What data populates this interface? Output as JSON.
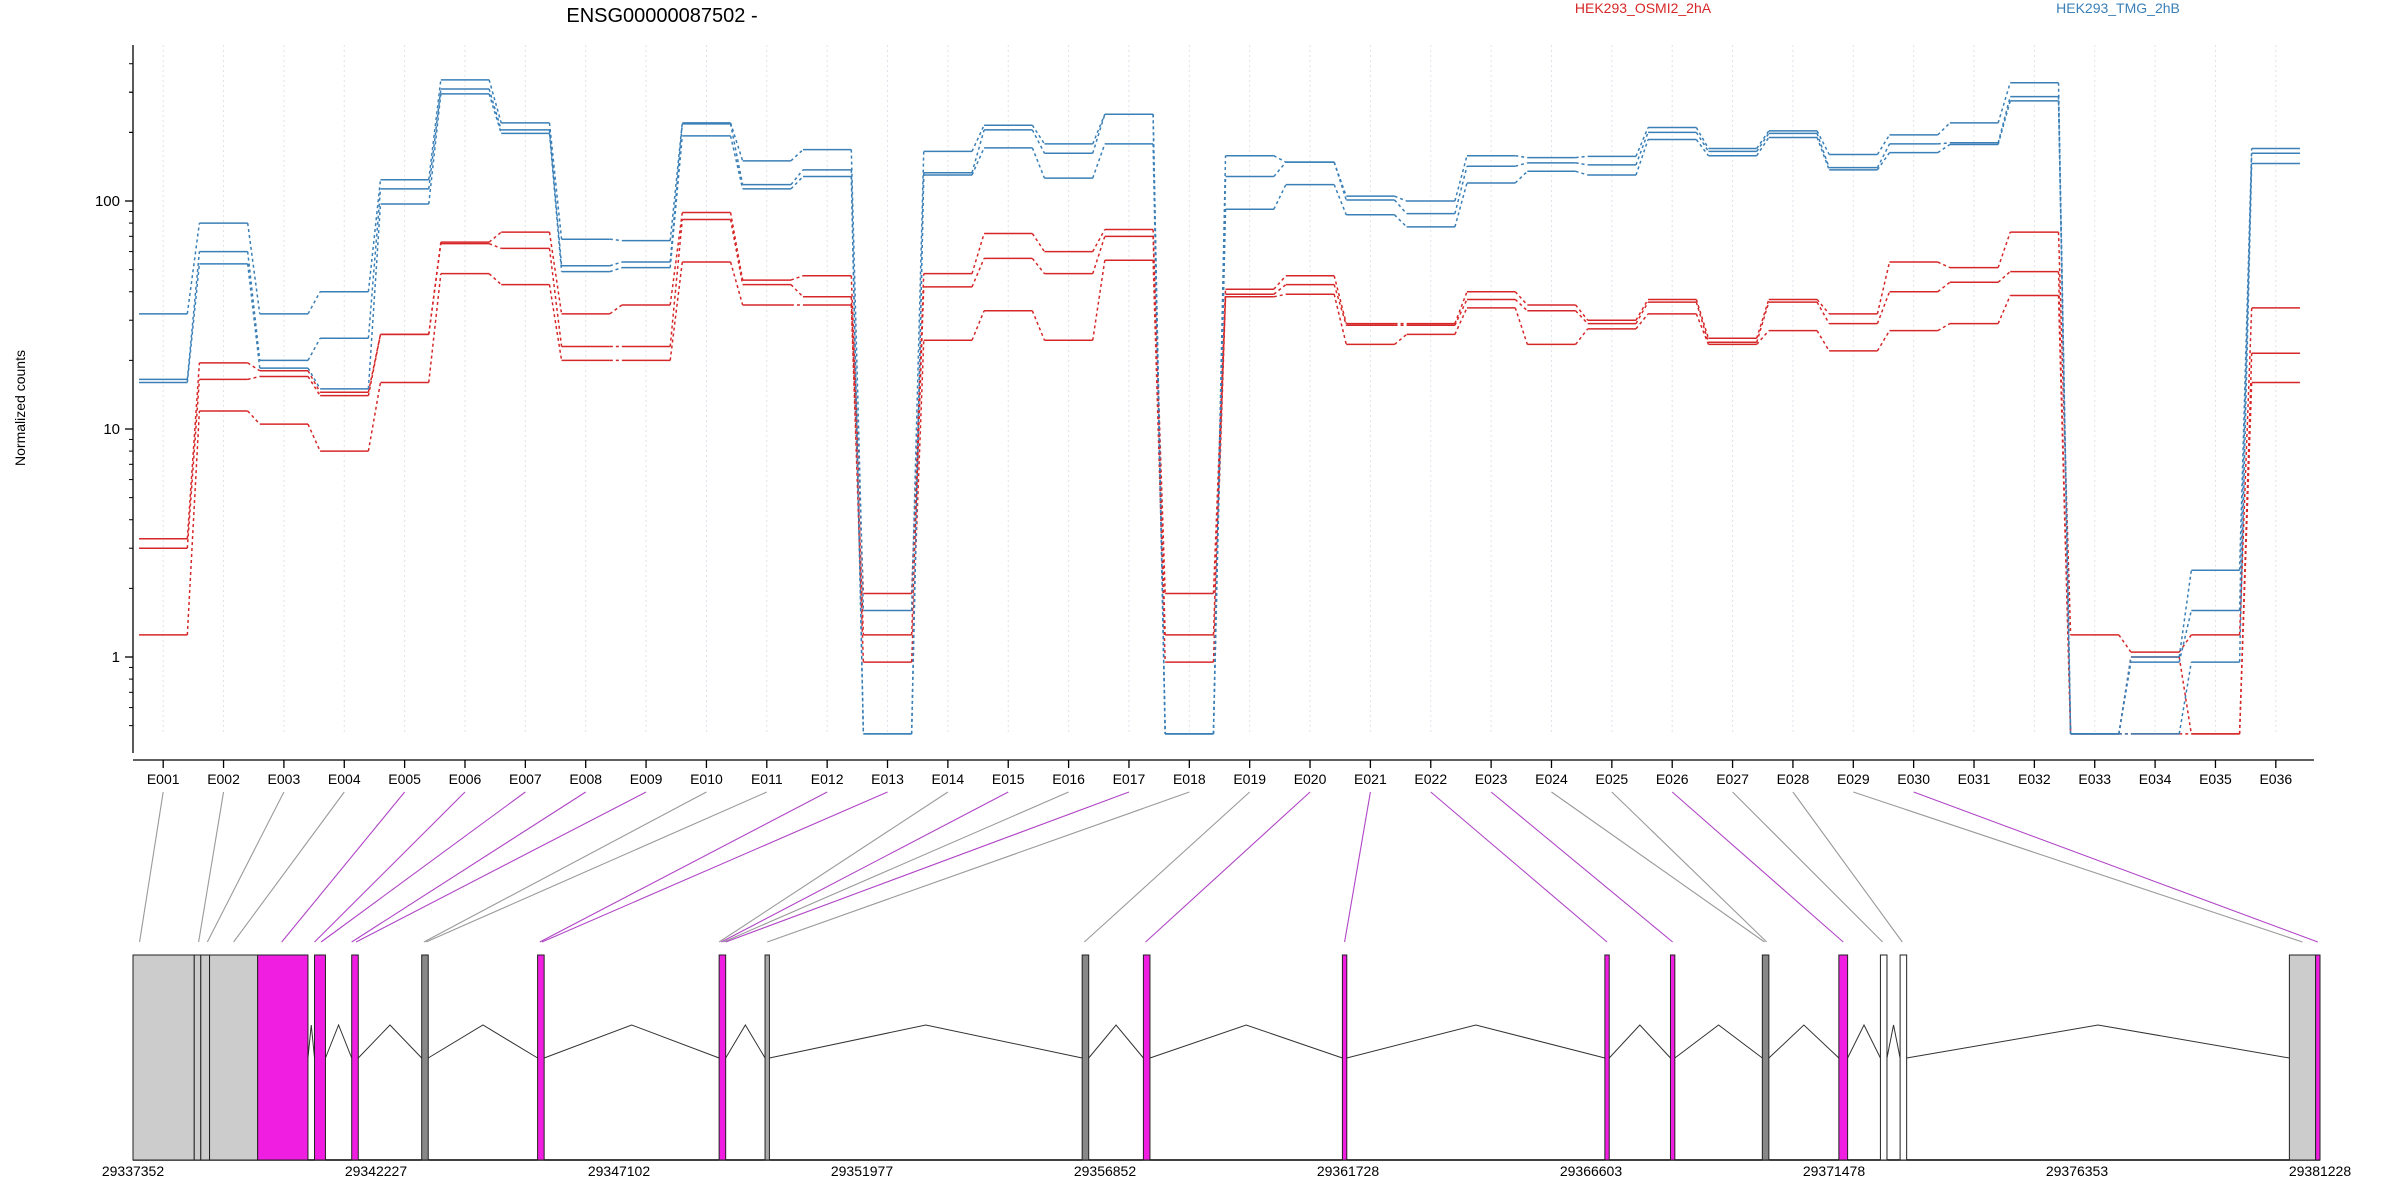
{
  "chart_data": {
    "type": "line",
    "title": "ENSG00000087502 -",
    "ylabel": "Normalized counts",
    "yscale": "log",
    "ylim": [
      0.45,
      400
    ],
    "yticks": [
      1,
      10,
      100
    ],
    "ytick_labels": [
      "1",
      "10",
      "100"
    ],
    "grid": "vertical dotted lines at each exon",
    "legend": [
      {
        "name": "HEK293_OSMI2_2hA",
        "color": "#d62728",
        "position": "top"
      },
      {
        "name": "HEK293_TMG_2hB",
        "color": "#3a7fb6",
        "position": "top-right"
      }
    ],
    "categories": [
      "E001",
      "E002",
      "E003",
      "E004",
      "E005",
      "E006",
      "E007",
      "E008",
      "E009",
      "E010",
      "E011",
      "E012",
      "E013",
      "E014",
      "E015",
      "E016",
      "E017",
      "E018",
      "E019",
      "E020",
      "E021",
      "E022",
      "E023",
      "E024",
      "E025",
      "E026",
      "E027",
      "E028",
      "E029",
      "E030",
      "E031",
      "E032",
      "E033",
      "E034",
      "E035",
      "E036"
    ],
    "series": [
      {
        "group": "HEK293_OSMI2_2hA",
        "color": "#d62728",
        "values": [
          3.3,
          19.5,
          18,
          14.5,
          26,
          66,
          73,
          32,
          35,
          89,
          45,
          47,
          1.9,
          48,
          72,
          60,
          75,
          1.9,
          41,
          47,
          29,
          29,
          40,
          35,
          30,
          37,
          25,
          37,
          32,
          54,
          51,
          73,
          1.25,
          1.05,
          1.25,
          34
        ]
      },
      {
        "group": "HEK293_OSMI2_2hA",
        "color": "#d62728",
        "values": [
          3.0,
          16.5,
          17,
          14.0,
          26,
          65,
          62,
          23,
          23,
          83,
          43,
          38,
          1.25,
          42,
          56,
          48,
          70,
          1.25,
          39,
          43,
          28.5,
          28.5,
          37,
          33,
          29,
          36,
          24,
          36,
          29,
          40,
          44,
          49,
          0.46,
          1.0,
          0.46,
          21.5
        ]
      },
      {
        "group": "HEK293_OSMI2_2hA",
        "color": "#d62728",
        "values": [
          1.25,
          12,
          10.5,
          8,
          16,
          48,
          43,
          20,
          20,
          54,
          35,
          35,
          0.95,
          24.5,
          33,
          24.5,
          55,
          0.95,
          38,
          39,
          23.5,
          26,
          34,
          23.5,
          27.5,
          32,
          23.5,
          27,
          22,
          27,
          29,
          38.5,
          0.46,
          0.46,
          0.46,
          16
        ]
      },
      {
        "group": "HEK293_TMG_2hB",
        "color": "#3a7fb6",
        "values": [
          32,
          80,
          32,
          40,
          124,
          340,
          220,
          68,
          67,
          220,
          150,
          168,
          1.6,
          165,
          215,
          178,
          240,
          0.46,
          158,
          148,
          105,
          100,
          158,
          155,
          157,
          210,
          170,
          203,
          160,
          195,
          220,
          330,
          0.46,
          1.0,
          2.4,
          170
        ]
      },
      {
        "group": "HEK293_TMG_2hB",
        "color": "#3a7fb6",
        "values": [
          16.5,
          60,
          20,
          25,
          113,
          310,
          205,
          52,
          54,
          218,
          118,
          137,
          0.46,
          133,
          205,
          162,
          240,
          0.46,
          128,
          148,
          101,
          88,
          142,
          147,
          144,
          200,
          165,
          198,
          140,
          178,
          180,
          287,
          0.46,
          0.95,
          1.6,
          162
        ]
      },
      {
        "group": "HEK293_TMG_2hB",
        "color": "#3a7fb6",
        "values": [
          16,
          53,
          18.5,
          15,
          97,
          295,
          198,
          49,
          51,
          193,
          113,
          128,
          0.46,
          130,
          171,
          126,
          178,
          0.46,
          92,
          118,
          87,
          77,
          120,
          135,
          130,
          186,
          158,
          190,
          137,
          163,
          177,
          275,
          0.46,
          0.46,
          0.95,
          146
        ]
      }
    ],
    "gene_model": {
      "coordinate_ticks": [
        "29337352",
        "29342227",
        "29347102",
        "29351977",
        "29356852",
        "29361728",
        "29366603",
        "29371478",
        "29376353",
        "29381228"
      ],
      "exon_boxes": [
        {
          "start": 0.0,
          "end": 0.028,
          "fill": "#cccccc"
        },
        {
          "start": 0.028,
          "end": 0.031,
          "fill": "#cccccc"
        },
        {
          "start": 0.031,
          "end": 0.035,
          "fill": "#cccccc"
        },
        {
          "start": 0.035,
          "end": 0.057,
          "fill": "#cccccc"
        },
        {
          "start": 0.057,
          "end": 0.08,
          "fill": "#f01ee0"
        },
        {
          "start": 0.083,
          "end": 0.088,
          "fill": "#f01ee0"
        },
        {
          "start": 0.1,
          "end": 0.103,
          "fill": "#f01ee0"
        },
        {
          "start": 0.132,
          "end": 0.135,
          "fill": "#888888"
        },
        {
          "start": 0.185,
          "end": 0.188,
          "fill": "#f01ee0"
        },
        {
          "start": 0.268,
          "end": 0.271,
          "fill": "#f01ee0"
        },
        {
          "start": 0.289,
          "end": 0.291,
          "fill": "#aaaaaa"
        },
        {
          "start": 0.434,
          "end": 0.437,
          "fill": "#888888"
        },
        {
          "start": 0.462,
          "end": 0.465,
          "fill": "#f01ee0"
        },
        {
          "start": 0.553,
          "end": 0.555,
          "fill": "#f01ee0"
        },
        {
          "start": 0.673,
          "end": 0.675,
          "fill": "#f01ee0"
        },
        {
          "start": 0.703,
          "end": 0.705,
          "fill": "#f01ee0"
        },
        {
          "start": 0.745,
          "end": 0.748,
          "fill": "#888888"
        },
        {
          "start": 0.78,
          "end": 0.784,
          "fill": "#f01ee0"
        },
        {
          "start": 0.799,
          "end": 0.802,
          "fill": "#ffffff"
        },
        {
          "start": 0.808,
          "end": 0.811,
          "fill": "#ffffff"
        },
        {
          "start": 0.986,
          "end": 0.998,
          "fill": "#cccccc"
        },
        {
          "start": 0.998,
          "end": 1.0,
          "fill": "#f01ee0"
        }
      ],
      "exon_map": [
        {
          "exon": "E001",
          "pos": 0.003,
          "hit": false
        },
        {
          "exon": "E002",
          "pos": 0.03,
          "hit": false
        },
        {
          "exon": "E003",
          "pos": 0.034,
          "hit": false
        },
        {
          "exon": "E004",
          "pos": 0.046,
          "hit": false
        },
        {
          "exon": "E005",
          "pos": 0.068,
          "hit": true
        },
        {
          "exon": "E006",
          "pos": 0.083,
          "hit": true
        },
        {
          "exon": "E007",
          "pos": 0.086,
          "hit": true
        },
        {
          "exon": "E008",
          "pos": 0.1,
          "hit": true
        },
        {
          "exon": "E009",
          "pos": 0.102,
          "hit": true
        },
        {
          "exon": "E010",
          "pos": 0.133,
          "hit": false
        },
        {
          "exon": "E011",
          "pos": 0.134,
          "hit": false
        },
        {
          "exon": "E012",
          "pos": 0.186,
          "hit": true
        },
        {
          "exon": "E013",
          "pos": 0.187,
          "hit": true
        },
        {
          "exon": "E014",
          "pos": 0.268,
          "hit": false
        },
        {
          "exon": "E015",
          "pos": 0.269,
          "hit": true
        },
        {
          "exon": "E016",
          "pos": 0.27,
          "hit": false
        },
        {
          "exon": "E017",
          "pos": 0.271,
          "hit": true
        },
        {
          "exon": "E018",
          "pos": 0.29,
          "hit": false
        },
        {
          "exon": "E019",
          "pos": 0.435,
          "hit": false
        },
        {
          "exon": "E020",
          "pos": 0.463,
          "hit": true
        },
        {
          "exon": "E021",
          "pos": 0.554,
          "hit": true
        },
        {
          "exon": "E022",
          "pos": 0.674,
          "hit": true
        },
        {
          "exon": "E023",
          "pos": 0.704,
          "hit": true
        },
        {
          "exon": "E024",
          "pos": 0.746,
          "hit": false
        },
        {
          "exon": "E025",
          "pos": 0.747,
          "hit": false
        },
        {
          "exon": "E026",
          "pos": 0.782,
          "hit": true
        },
        {
          "exon": "E027",
          "pos": 0.8,
          "hit": false
        },
        {
          "exon": "E028",
          "pos": 0.809,
          "hit": false
        },
        {
          "exon": "E029",
          "pos": 0.992,
          "hit": false
        },
        {
          "exon": "E030",
          "pos": 0.999,
          "hit": true
        }
      ]
    }
  }
}
